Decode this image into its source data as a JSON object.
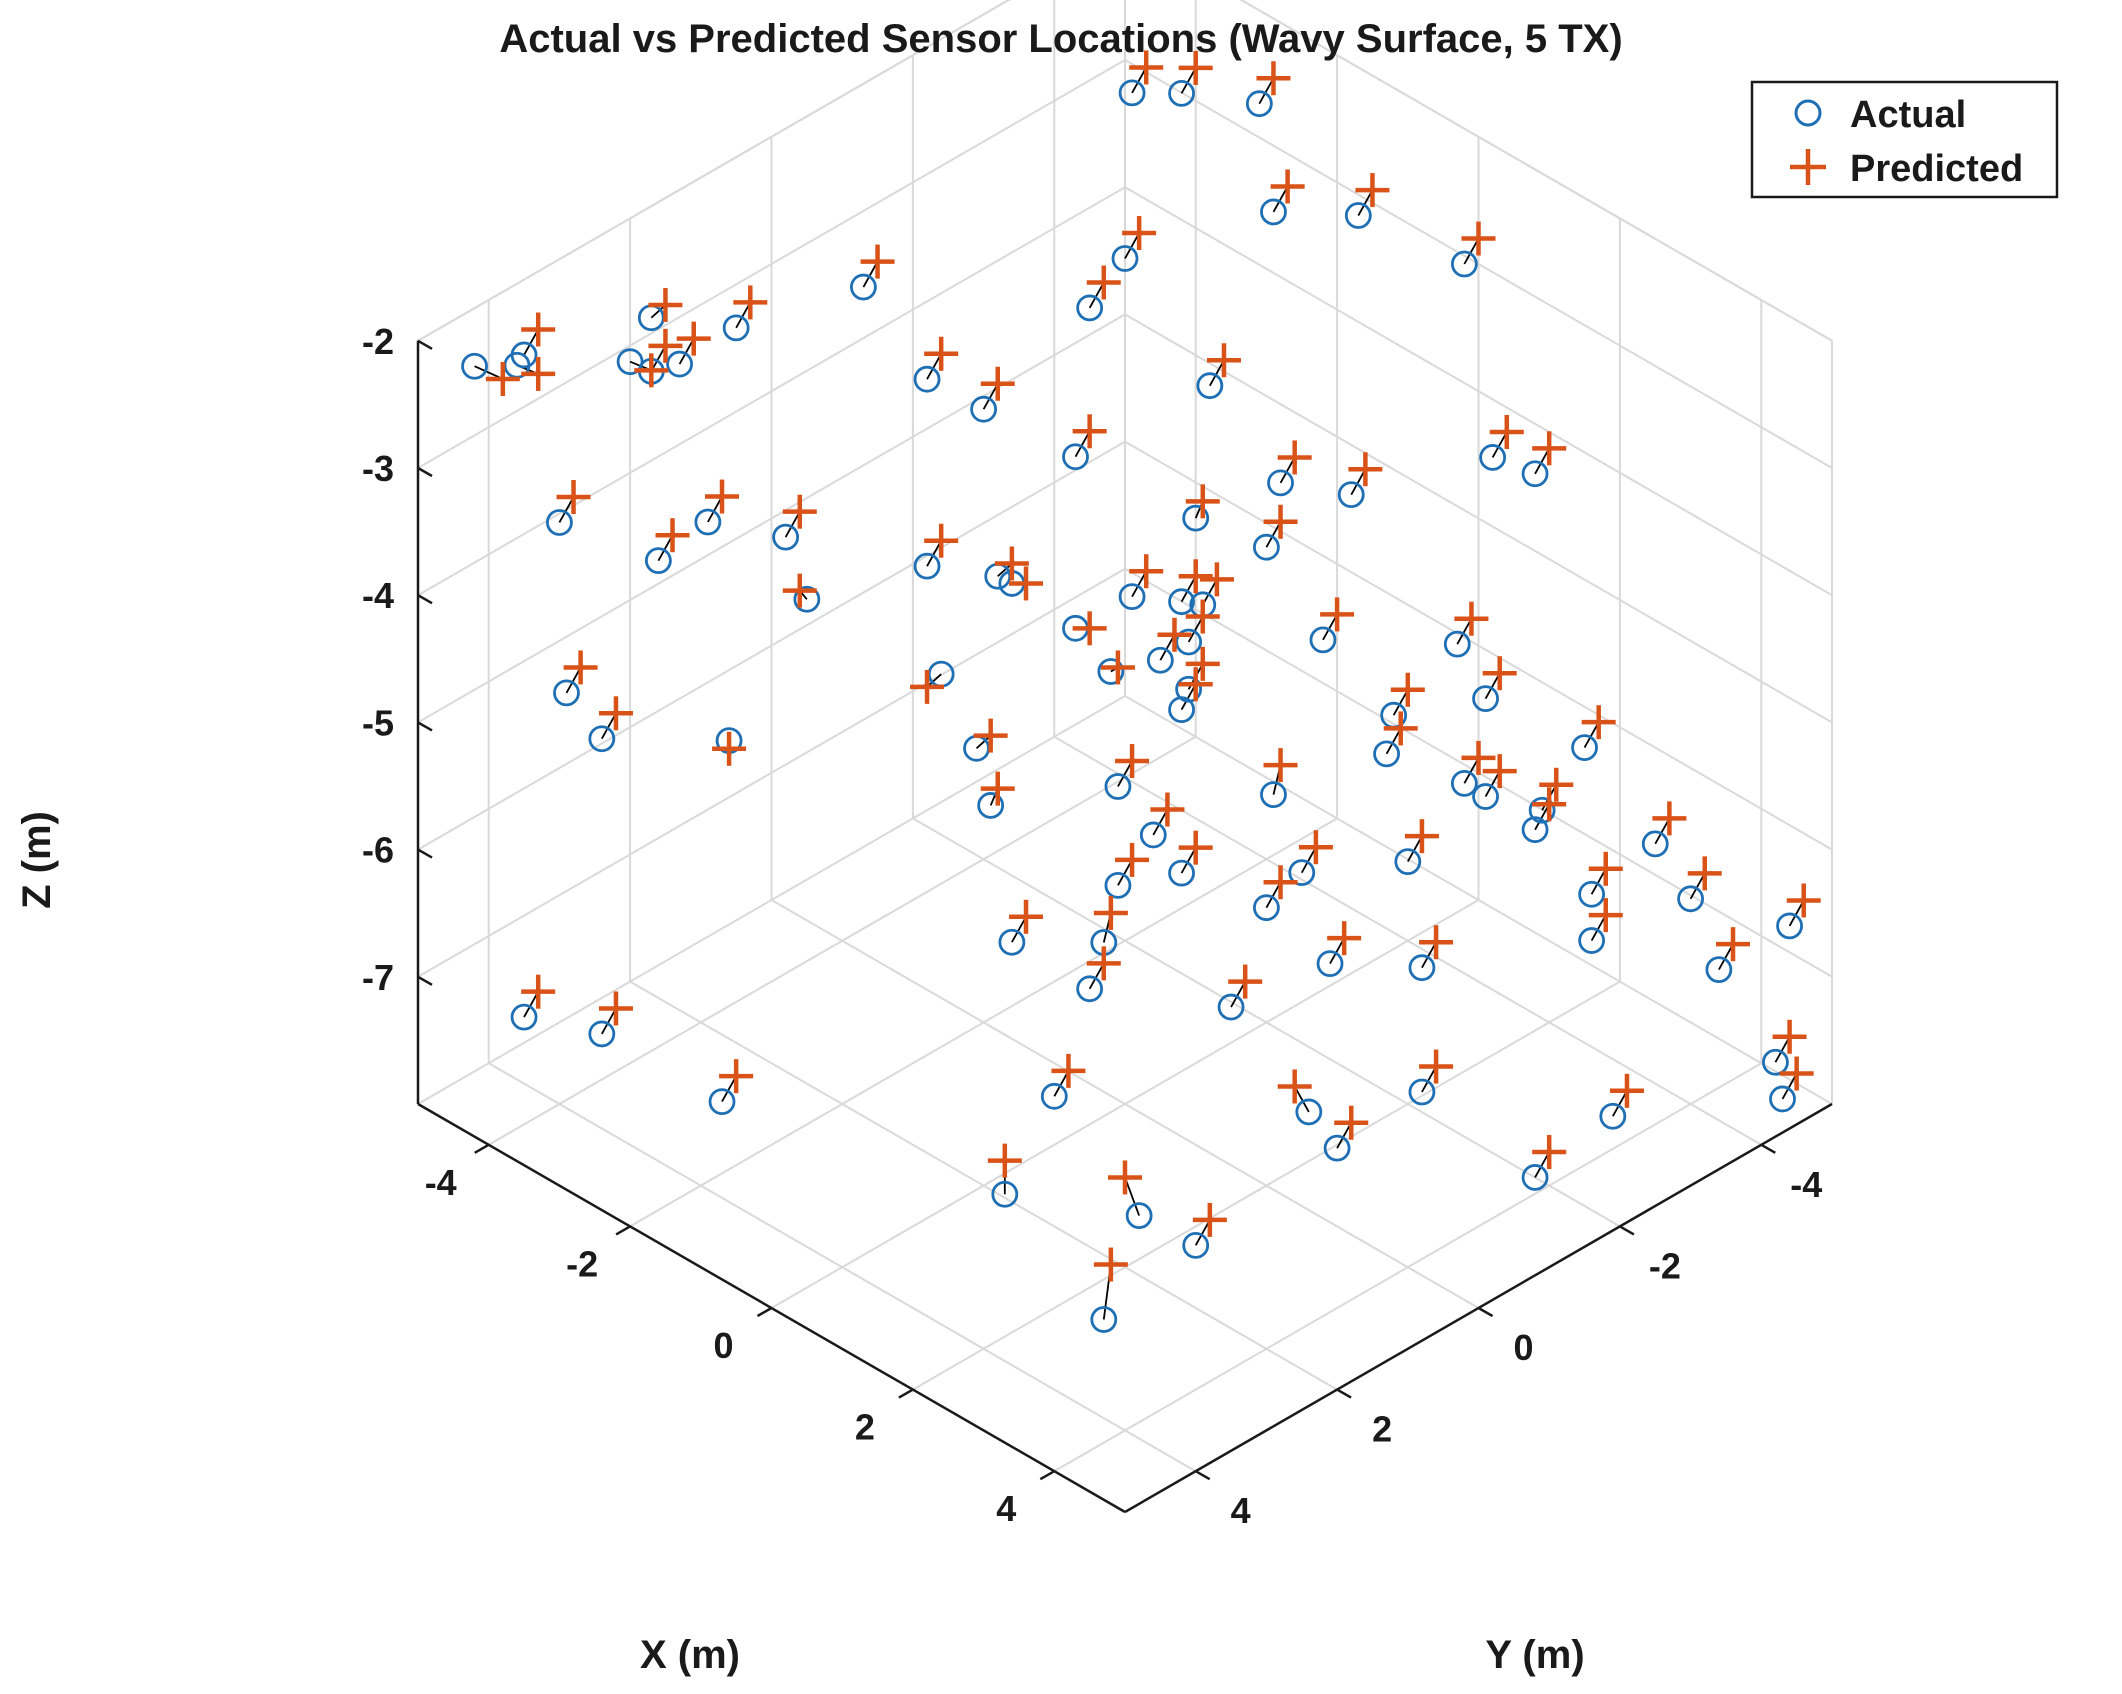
{
  "chart_data": {
    "type": "scatter3d",
    "title": "Actual vs Predicted Sensor Locations (Wavy Surface, 5 TX)",
    "xlabel": "X (m)",
    "ylabel": "Y (m)",
    "zlabel": "Z (m)",
    "xlim": [
      -5,
      5
    ],
    "ylim": [
      -5,
      5
    ],
    "zlim": [
      -8,
      -2
    ],
    "x_ticks": [
      -4,
      -2,
      0,
      2,
      4
    ],
    "y_ticks": [
      -4,
      -2,
      0,
      2,
      4
    ],
    "z_ticks": [
      -2,
      -3,
      -4,
      -5,
      -6,
      -7
    ],
    "grid": true,
    "legend_position": "top-right",
    "colors": {
      "actual": "#1f6fb5",
      "predicted": "#d95319",
      "error_line": "#000000",
      "grid": "#d9d9d9",
      "axis": "#1a1a1a"
    },
    "series": [
      {
        "name": "Actual",
        "marker": "circle",
        "points": [
          [
            -4.6,
            4.6,
            -2.2
          ],
          [
            -4.0,
            4.6,
            -2.0
          ],
          [
            -3.4,
            3.6,
            -2.1
          ],
          [
            -4.1,
            2.6,
            -2.3
          ],
          [
            -3.6,
            3.1,
            -2.4
          ],
          [
            -4.7,
            3.8,
            -2.4
          ],
          [
            -3.8,
            2.5,
            -2.6
          ],
          [
            -4.0,
            1.5,
            -2.7
          ],
          [
            -3.6,
            0.1,
            -2.7
          ],
          [
            -2.8,
            0.0,
            -3.2
          ],
          [
            -2.5,
            -0.5,
            -3.5
          ],
          [
            -3.8,
            4.2,
            -3.3
          ],
          [
            -3.1,
            3.5,
            -3.6
          ],
          [
            -2.6,
            3.3,
            -3.2
          ],
          [
            -2.2,
            2.3,
            -4.0
          ],
          [
            -1.6,
            1.2,
            -3.9
          ],
          [
            -1.1,
            0.5,
            -4.1
          ],
          [
            -0.8,
            1.8,
            -4.3
          ],
          [
            -4.0,
            3.9,
            -4.8
          ],
          [
            -3.5,
            3.9,
            -5.0
          ],
          [
            -3.2,
            2.4,
            -5.4
          ],
          [
            -2.8,
            2.0,
            -3.8
          ],
          [
            -0.6,
            1.0,
            -6.6
          ],
          [
            -3.6,
            4.9,
            -6.9
          ],
          [
            -3.0,
            4.4,
            -7.0
          ],
          [
            -2.1,
            3.6,
            -7.5
          ],
          [
            0.1,
            1.8,
            -8.1
          ],
          [
            1.0,
            0.8,
            -8.3
          ],
          [
            1.4,
            1.7,
            -8.7
          ],
          [
            -1.9,
            -1.4,
            -2.8
          ],
          [
            -2.1,
            -2.1,
            -2.7
          ],
          [
            -3.3,
            -3.4,
            -2.2
          ],
          [
            -1.8,
            -3.7,
            -1.9
          ],
          [
            -1.5,
            -2.7,
            -3.7
          ],
          [
            -0.9,
            -3.1,
            -4.4
          ],
          [
            -0.3,
            -1.1,
            -4.5
          ],
          [
            -0.8,
            -0.1,
            -3.2
          ],
          [
            0.1,
            -1.9,
            -4.2
          ],
          [
            -0.6,
            -1.6,
            -4.1
          ],
          [
            -1.6,
            0.2,
            -4.3
          ],
          [
            -0.4,
            -0.5,
            -4.3
          ],
          [
            -0.1,
            0.6,
            -4.1
          ],
          [
            0.2,
            -0.9,
            -4.3
          ],
          [
            -0.1,
            0.1,
            -4.6
          ],
          [
            0.4,
            -0.5,
            -4.4
          ],
          [
            -0.2,
            -0.7,
            -4.8
          ],
          [
            0.2,
            -0.7,
            -4.9
          ],
          [
            0.4,
            -0.4,
            -4.9
          ],
          [
            1.0,
            -1.1,
            -5.6
          ],
          [
            -1.2,
            0.9,
            -5.3
          ],
          [
            -0.4,
            1.5,
            -5.3
          ],
          [
            0.8,
            0.4,
            -5.5
          ],
          [
            0.7,
            0.8,
            -5.8
          ],
          [
            1.3,
            1.6,
            -5.8
          ],
          [
            1.3,
            1.8,
            -6.1
          ],
          [
            -0.2,
            -0.1,
            -5.6
          ],
          [
            1.0,
            0.2,
            -5.8
          ],
          [
            2.0,
            -0.5,
            -5.7
          ],
          [
            2.8,
            0.2,
            -7.1
          ],
          [
            1.9,
            0.4,
            -6.5
          ],
          [
            1.4,
            -0.6,
            -6.2
          ],
          [
            1.6,
            -1.3,
            -6.8
          ],
          [
            0.9,
            -3.1,
            -6.8
          ],
          [
            0.7,
            -4.4,
            -6.0
          ],
          [
            0.3,
            -4.4,
            -5.7
          ],
          [
            -0.1,
            -3.3,
            -4.3
          ],
          [
            0.7,
            -2.1,
            -4.8
          ],
          [
            1.3,
            -2.4,
            -5.6
          ],
          [
            1.9,
            -3.2,
            -6.0
          ],
          [
            1.9,
            -2.9,
            -5.8
          ],
          [
            2.0,
            -3.9,
            -6.3
          ],
          [
            2.7,
            -3.9,
            -7.1
          ],
          [
            2.5,
            -3.3,
            -6.1
          ],
          [
            1.5,
            -2.3,
            -5.2
          ],
          [
            2.3,
            -1.9,
            -6.8
          ],
          [
            3.2,
            -1.0,
            -7.2
          ],
          [
            3.8,
            -2.0,
            -8.0
          ],
          [
            3.6,
            -3.3,
            -8.0
          ],
          [
            2.6,
            -4.0,
            -6.8
          ],
          [
            2.0,
            -4.5,
            -6.0
          ],
          [
            2.9,
            -4.6,
            -6.5
          ],
          [
            3.2,
            -4.8,
            -6.9
          ],
          [
            3.8,
            -4.6,
            -7.2
          ],
          [
            -0.1,
            -4.9,
            -3.0
          ],
          [
            1.1,
            -4.7,
            -4.2
          ],
          [
            0.6,
            -4.6,
            -4.2
          ],
          [
            4.4,
            -4.8,
            -7.8
          ],
          [
            4.9,
            -4.4,
            -7.8
          ],
          [
            -1.6,
            -4.9,
            -3.1
          ],
          [
            -2.4,
            -4.5,
            -3.2
          ],
          [
            -3.1,
            -3.9,
            -2.3
          ],
          [
            3.6,
            0.6,
            -7.0
          ],
          [
            4.7,
            -4.7,
            -6.6
          ],
          [
            2.7,
            1.7,
            -7.7
          ],
          [
            1.9,
            2.9,
            -6.4
          ]
        ]
      },
      {
        "name": "Predicted",
        "marker": "plus",
        "points": [
          [
            -4.4,
            4.4,
            -2.3
          ],
          [
            -3.9,
            4.4,
            -2.1
          ],
          [
            -3.3,
            3.4,
            -2.2
          ],
          [
            -4.0,
            2.5,
            -2.2
          ],
          [
            -3.5,
            3.0,
            -2.2
          ],
          [
            -4.6,
            3.7,
            -2.2
          ],
          [
            -3.7,
            2.4,
            -2.4
          ],
          [
            -3.9,
            1.4,
            -2.5
          ],
          [
            -3.5,
            0.0,
            -2.5
          ],
          [
            -2.7,
            -0.1,
            -3.0
          ],
          [
            -2.4,
            -0.6,
            -3.3
          ],
          [
            -3.7,
            4.1,
            -3.1
          ],
          [
            -3.0,
            3.4,
            -3.4
          ],
          [
            -2.5,
            3.2,
            -3.0
          ],
          [
            -2.2,
            2.4,
            -3.9
          ],
          [
            -1.5,
            1.1,
            -3.7
          ],
          [
            -1.0,
            0.4,
            -4.1
          ],
          [
            -0.9,
            1.9,
            -4.4
          ],
          [
            -3.9,
            3.8,
            -4.6
          ],
          [
            -3.4,
            3.8,
            -4.8
          ],
          [
            -3.1,
            2.5,
            -5.4
          ],
          [
            -2.7,
            1.9,
            -3.6
          ],
          [
            -0.5,
            0.9,
            -6.4
          ],
          [
            -3.5,
            4.8,
            -6.7
          ],
          [
            -2.9,
            4.3,
            -6.8
          ],
          [
            -2.0,
            3.5,
            -7.3
          ],
          [
            0.0,
            1.7,
            -7.9
          ],
          [
            0.9,
            0.9,
            -8.0
          ],
          [
            1.4,
            1.6,
            -8.3
          ],
          [
            -1.8,
            -1.5,
            -2.6
          ],
          [
            -2.0,
            -2.2,
            -2.5
          ],
          [
            -3.2,
            -3.5,
            -2.0
          ],
          [
            -1.7,
            -3.8,
            -1.7
          ],
          [
            -1.4,
            -2.8,
            -3.5
          ],
          [
            -0.8,
            -3.2,
            -4.2
          ],
          [
            -0.2,
            -1.2,
            -4.3
          ],
          [
            -0.7,
            -0.2,
            -3.0
          ],
          [
            0.2,
            -2.0,
            -4.0
          ],
          [
            -0.6,
            -1.7,
            -4.0
          ],
          [
            -1.5,
            0.1,
            -4.2
          ],
          [
            -0.3,
            -0.6,
            -4.1
          ],
          [
            0.0,
            0.5,
            -4.1
          ],
          [
            0.3,
            -1.0,
            -4.1
          ],
          [
            -0.1,
            0.0,
            -4.6
          ],
          [
            0.5,
            -0.6,
            -4.2
          ],
          [
            -0.1,
            -0.8,
            -4.6
          ],
          [
            0.3,
            -0.8,
            -4.7
          ],
          [
            0.5,
            -0.5,
            -4.7
          ],
          [
            1.0,
            -1.2,
            -5.4
          ],
          [
            -1.1,
            0.8,
            -5.2
          ],
          [
            -0.4,
            1.4,
            -5.2
          ],
          [
            0.9,
            0.3,
            -5.3
          ],
          [
            0.8,
            0.7,
            -5.6
          ],
          [
            1.3,
            1.5,
            -5.6
          ],
          [
            1.4,
            1.7,
            -5.9
          ],
          [
            -0.1,
            -0.2,
            -5.4
          ],
          [
            1.1,
            0.1,
            -5.6
          ],
          [
            2.1,
            -0.6,
            -5.5
          ],
          [
            2.7,
            0.3,
            -6.9
          ],
          [
            2.0,
            0.3,
            -6.3
          ],
          [
            1.5,
            -0.7,
            -6.0
          ],
          [
            1.7,
            -1.4,
            -6.6
          ],
          [
            1.0,
            -3.2,
            -6.6
          ],
          [
            0.8,
            -4.5,
            -5.8
          ],
          [
            0.4,
            -4.5,
            -5.5
          ],
          [
            0.0,
            -3.4,
            -4.1
          ],
          [
            0.8,
            -2.2,
            -4.6
          ],
          [
            1.4,
            -2.5,
            -5.4
          ],
          [
            2.0,
            -3.3,
            -5.8
          ],
          [
            2.0,
            -3.0,
            -5.6
          ],
          [
            2.1,
            -4.0,
            -6.1
          ],
          [
            2.8,
            -4.0,
            -6.9
          ],
          [
            2.6,
            -3.4,
            -5.9
          ],
          [
            1.6,
            -2.4,
            -5.0
          ],
          [
            2.4,
            -2.0,
            -6.6
          ],
          [
            3.3,
            -1.1,
            -7.0
          ],
          [
            3.9,
            -2.1,
            -7.8
          ],
          [
            3.7,
            -3.4,
            -7.8
          ],
          [
            2.7,
            -4.1,
            -6.6
          ],
          [
            2.1,
            -4.6,
            -5.8
          ],
          [
            3.0,
            -4.7,
            -6.3
          ],
          [
            3.3,
            -4.9,
            -6.7
          ],
          [
            3.9,
            -4.7,
            -7.0
          ],
          [
            0.0,
            -5.0,
            -2.8
          ],
          [
            1.2,
            -4.8,
            -4.0
          ],
          [
            0.7,
            -4.7,
            -4.0
          ],
          [
            4.5,
            -4.9,
            -7.6
          ],
          [
            5.0,
            -4.5,
            -7.6
          ],
          [
            -1.5,
            -5.0,
            -2.9
          ],
          [
            -2.3,
            -4.6,
            -3.0
          ],
          [
            -3.0,
            -4.0,
            -2.1
          ],
          [
            3.7,
            0.5,
            -6.8
          ],
          [
            4.8,
            -4.8,
            -6.4
          ],
          [
            2.8,
            1.6,
            -7.5
          ],
          [
            2.0,
            2.8,
            -6.2
          ]
        ]
      }
    ]
  }
}
